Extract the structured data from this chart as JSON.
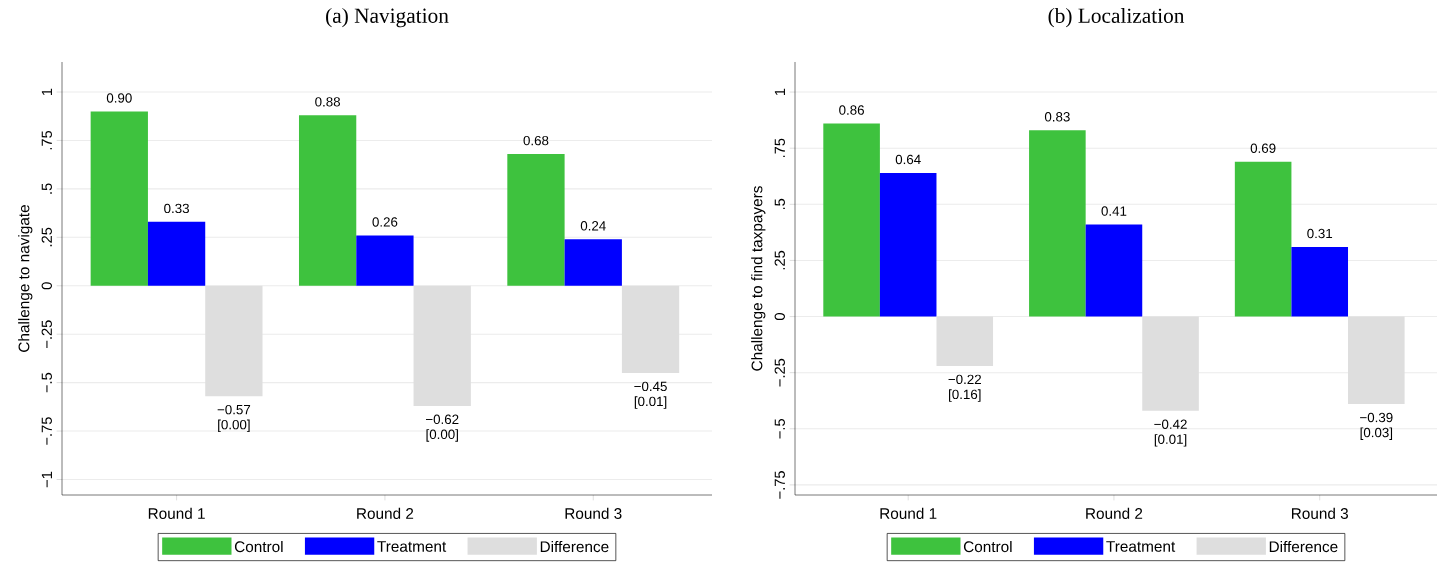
{
  "chart_data": [
    {
      "type": "bar",
      "title": "(a) Navigation",
      "ylabel": "Challenge to navigate",
      "categories": [
        "Round 1",
        "Round 2",
        "Round 3"
      ],
      "series": [
        {
          "name": "Control",
          "color": "#3ec23e",
          "values": [
            0.9,
            0.88,
            0.68
          ],
          "value_labels": [
            "0.90",
            "0.88",
            "0.68"
          ]
        },
        {
          "name": "Treatment",
          "color": "#0000ff",
          "values": [
            0.33,
            0.26,
            0.24
          ],
          "value_labels": [
            "0.33",
            "0.26",
            "0.24"
          ]
        },
        {
          "name": "Difference",
          "color": "#dedede",
          "values": [
            -0.57,
            -0.62,
            -0.45
          ],
          "value_labels": [
            "−0.57",
            "−0.62",
            "−0.45"
          ]
        }
      ],
      "ylim": [
        -1.08,
        1.155
      ],
      "yticks": [
        {
          "value": -1,
          "label": "−1"
        },
        {
          "value": -0.75,
          "label": "−.75"
        },
        {
          "value": -0.5,
          "label": "−.5"
        },
        {
          "value": -0.25,
          "label": "−.25"
        },
        0,
        {
          "value": 0.25,
          "label": ".25"
        },
        {
          "value": 0.5,
          "label": ".5"
        },
        {
          "value": 0.75,
          "label": ".75"
        },
        1
      ],
      "grid": "y",
      "legend": "bottom",
      "annotations": [
        "[0.00]",
        "[0.00]",
        "[0.01]"
      ]
    },
    {
      "type": "bar",
      "title": "(b) Localization",
      "ylabel": "Challenge to find taxpayers",
      "categories": [
        "Round 1",
        "Round 2",
        "Round 3"
      ],
      "series": [
        {
          "name": "Control",
          "color": "#3ec23e",
          "values": [
            0.86,
            0.83,
            0.69
          ],
          "value_labels": [
            "0.86",
            "0.83",
            "0.69"
          ]
        },
        {
          "name": "Treatment",
          "color": "#0000ff",
          "values": [
            0.64,
            0.41,
            0.31
          ],
          "value_labels": [
            "0.64",
            "0.41",
            "0.31"
          ]
        },
        {
          "name": "Difference",
          "color": "#dedede",
          "values": [
            -0.22,
            -0.42,
            -0.39
          ],
          "value_labels": [
            "−0.22",
            "−0.42",
            "−0.39"
          ]
        }
      ],
      "ylim": [
        -0.795,
        1.134
      ],
      "yticks": [
        {
          "value": -0.75,
          "label": "−.75"
        },
        {
          "value": -0.5,
          "label": "−.5"
        },
        {
          "value": -0.25,
          "label": "−.25"
        },
        0,
        {
          "value": 0.25,
          "label": ".25"
        },
        {
          "value": 0.5,
          "label": ".5"
        },
        {
          "value": 0.75,
          "label": ".75"
        },
        1
      ],
      "grid": "y",
      "legend": "bottom",
      "annotations": [
        "[0.16]",
        "[0.01]",
        "[0.03]"
      ]
    }
  ]
}
